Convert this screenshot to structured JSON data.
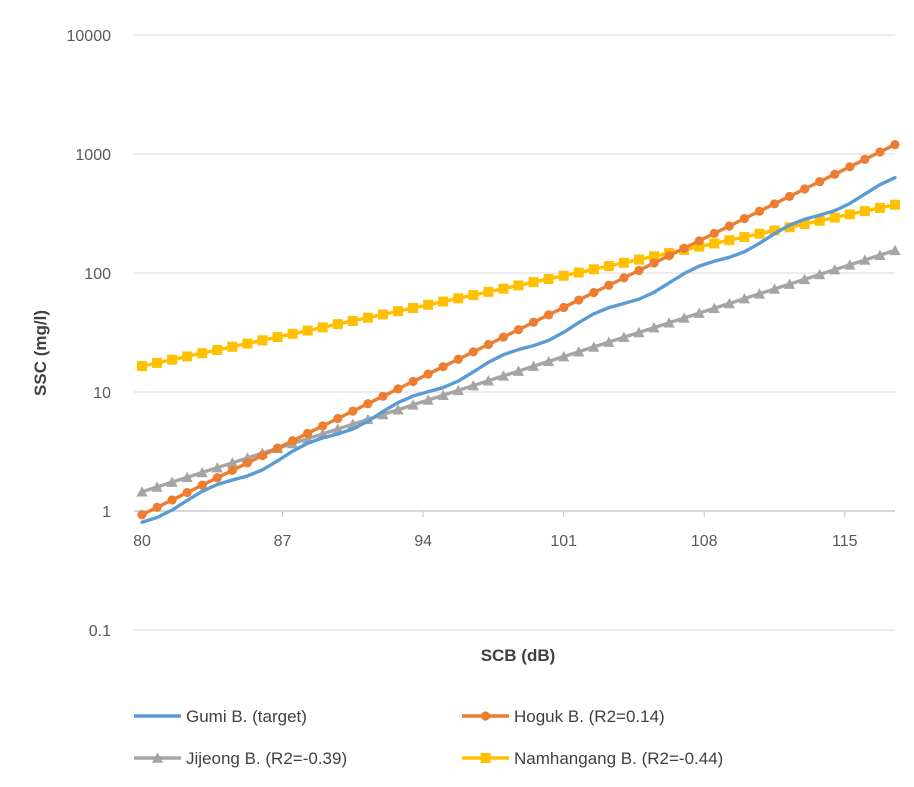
{
  "chart_data": {
    "type": "line",
    "title": "",
    "xlabel": "SCB (dB)",
    "ylabel": "SSC (mg/l)",
    "x_range": [
      80,
      117.5
    ],
    "x_ticks": [
      80,
      87,
      94,
      101,
      108,
      115
    ],
    "x_tick_labels": [
      "80",
      "87",
      "94",
      "101",
      "108",
      "115"
    ],
    "y_scale": "log",
    "ylim": [
      0.1,
      10000
    ],
    "y_ticks": [
      0.1,
      1,
      10,
      100,
      1000,
      10000
    ],
    "y_tick_labels": [
      "0.1",
      "1",
      "10",
      "100",
      "1000",
      "10000"
    ],
    "y_gridlines": true,
    "x_axis_crosses_at": 1,
    "legend_position": "bottom",
    "marker_step": 0.75,
    "series": [
      {
        "name": "Gumi B. (target)",
        "color": "#5B9BD5",
        "marker": "none",
        "x_start": 80,
        "x_end": 117.5,
        "y_start": 0.82,
        "y_end": 600
      },
      {
        "name": "Hoguk B. (R2=0.14)",
        "color": "#ED7D31",
        "marker": "circle",
        "x_start": 80,
        "x_end": 117.5,
        "y_start": 0.93,
        "y_end": 1200
      },
      {
        "name": "Jijeong B. (R2=-0.39)",
        "color": "#A5A5A5",
        "marker": "triangle",
        "x_start": 80,
        "x_end": 117.5,
        "y_start": 1.45,
        "y_end": 155
      },
      {
        "name": "Namhangang B. (R2=-0.44)",
        "color": "#FFC000",
        "marker": "square",
        "x_start": 80,
        "x_end": 117.5,
        "y_start": 16.5,
        "y_end": 375
      }
    ]
  }
}
